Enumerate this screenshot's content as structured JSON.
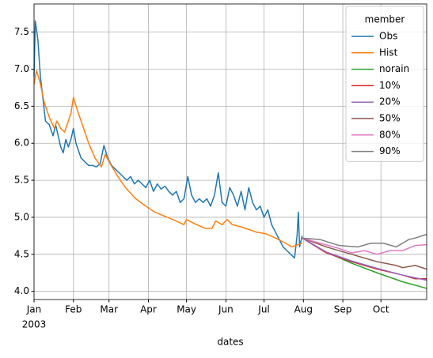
{
  "chart_data": {
    "type": "line",
    "xlabel": "dates",
    "xlim": [
      0,
      309
    ],
    "xticks": [
      {
        "value": 0,
        "label": "Jan"
      },
      {
        "value": 31,
        "label": "Feb"
      },
      {
        "value": 59,
        "label": "Mar"
      },
      {
        "value": 90,
        "label": "Apr"
      },
      {
        "value": 120,
        "label": "May"
      },
      {
        "value": 151,
        "label": "Jun"
      },
      {
        "value": 181,
        "label": "Jul"
      },
      {
        "value": 212,
        "label": "Aug"
      },
      {
        "value": 243,
        "label": "Sep"
      },
      {
        "value": 273,
        "label": "Oct"
      }
    ],
    "xtick_year": "2003",
    "ylim": [
      3.89,
      7.88
    ],
    "yticks": [
      {
        "value": 4,
        "label": "4.0"
      },
      4.5,
      {
        "value": 5,
        "label": "5.0"
      },
      5.5,
      {
        "value": 6,
        "label": "6.0"
      },
      6.5,
      {
        "value": 7,
        "label": "7.0"
      },
      7.5
    ],
    "grid": true,
    "legend_title": "member",
    "legend_position": "upper right",
    "series": [
      {
        "name": "Obs",
        "color": "#1f77b4",
        "x": [
          0,
          1,
          3,
          5,
          7,
          9,
          12,
          15,
          17,
          19,
          21,
          23,
          25,
          27,
          29,
          31,
          33,
          35,
          37,
          40,
          43,
          46,
          49,
          52,
          55,
          58,
          61,
          64,
          67,
          70,
          73,
          76,
          79,
          82,
          85,
          88,
          91,
          94,
          97,
          100,
          103,
          106,
          109,
          112,
          115,
          118,
          121,
          124,
          127,
          130,
          133,
          136,
          139,
          142,
          145,
          148,
          151,
          154,
          157,
          160,
          163,
          166,
          169,
          172,
          175,
          178,
          181,
          184,
          187,
          190,
          193,
          196,
          199,
          202,
          205,
          207,
          208,
          209,
          211
        ],
        "values": [
          6.9,
          7.65,
          7.4,
          6.9,
          6.6,
          6.3,
          6.25,
          6.1,
          6.25,
          6.1,
          5.95,
          5.87,
          6.05,
          5.95,
          6.05,
          6.2,
          6.0,
          5.9,
          5.8,
          5.75,
          5.7,
          5.7,
          5.68,
          5.72,
          5.97,
          5.8,
          5.7,
          5.65,
          5.6,
          5.55,
          5.5,
          5.55,
          5.45,
          5.5,
          5.45,
          5.4,
          5.5,
          5.35,
          5.45,
          5.38,
          5.42,
          5.35,
          5.3,
          5.35,
          5.2,
          5.25,
          5.55,
          5.3,
          5.2,
          5.25,
          5.2,
          5.25,
          5.15,
          5.3,
          5.6,
          5.2,
          5.15,
          5.4,
          5.3,
          5.15,
          5.35,
          5.1,
          5.4,
          5.2,
          5.1,
          5.15,
          5.0,
          5.1,
          4.9,
          4.8,
          4.7,
          4.6,
          4.55,
          4.5,
          4.45,
          4.75,
          5.07,
          4.6,
          4.75
        ]
      },
      {
        "name": "Hist",
        "color": "#ff7f0e",
        "x": [
          0,
          2,
          5,
          8,
          12,
          16,
          18,
          21,
          24,
          27,
          29,
          31,
          34,
          38,
          43,
          48,
          53,
          56,
          60,
          66,
          72,
          80,
          88,
          95,
          105,
          112,
          118,
          120,
          128,
          135,
          140,
          143,
          148,
          152,
          156,
          163,
          170,
          175,
          182,
          190,
          198,
          203,
          206,
          211
        ],
        "values": [
          6.8,
          6.98,
          6.8,
          6.55,
          6.35,
          6.2,
          6.3,
          6.2,
          6.15,
          6.3,
          6.4,
          6.62,
          6.45,
          6.25,
          6.0,
          5.8,
          5.68,
          5.85,
          5.72,
          5.55,
          5.4,
          5.25,
          5.15,
          5.07,
          5.0,
          4.95,
          4.9,
          4.97,
          4.9,
          4.85,
          4.85,
          4.95,
          4.9,
          4.97,
          4.9,
          4.87,
          4.83,
          4.8,
          4.78,
          4.72,
          4.65,
          4.6,
          4.62,
          4.65
        ]
      },
      {
        "name": "norain",
        "color": "#2ca02c",
        "x": [
          211,
          230,
          250,
          270,
          290,
          309
        ],
        "values": [
          4.72,
          4.53,
          4.38,
          4.25,
          4.13,
          4.04
        ]
      },
      {
        "name": "10%",
        "color": "#d62728",
        "x": [
          211,
          230,
          250,
          270,
          290,
          300,
          309
        ],
        "values": [
          4.72,
          4.52,
          4.4,
          4.3,
          4.22,
          4.17,
          4.17
        ]
      },
      {
        "name": "20%",
        "color": "#9467bd",
        "x": [
          211,
          230,
          250,
          270,
          290,
          309
        ],
        "values": [
          4.72,
          4.53,
          4.41,
          4.31,
          4.22,
          4.15
        ]
      },
      {
        "name": "50%",
        "color": "#8c564b",
        "x": [
          211,
          230,
          250,
          270,
          285,
          290,
          300,
          309
        ],
        "values": [
          4.72,
          4.6,
          4.5,
          4.4,
          4.35,
          4.32,
          4.35,
          4.3
        ]
      },
      {
        "name": "80%",
        "color": "#e377c2",
        "x": [
          211,
          225,
          240,
          250,
          260,
          270,
          280,
          290,
          300,
          309
        ],
        "values": [
          4.72,
          4.65,
          4.58,
          4.52,
          4.55,
          4.5,
          4.55,
          4.55,
          4.62,
          4.63
        ]
      },
      {
        "name": "90%",
        "color": "#7f7f7f",
        "x": [
          211,
          225,
          240,
          255,
          265,
          275,
          285,
          295,
          300,
          309
        ],
        "values": [
          4.72,
          4.7,
          4.62,
          4.6,
          4.65,
          4.65,
          4.6,
          4.7,
          4.72,
          4.77
        ]
      }
    ]
  }
}
